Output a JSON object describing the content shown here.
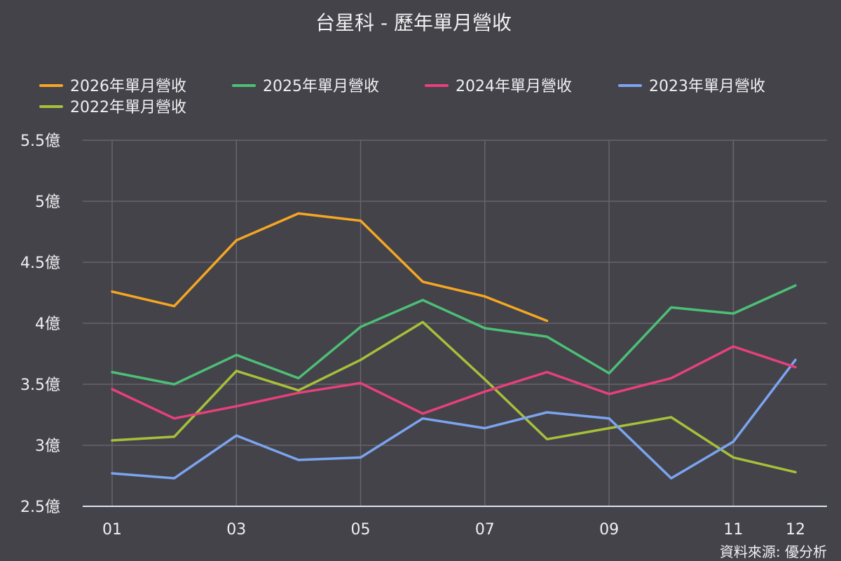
{
  "chart_data": {
    "type": "line",
    "title": "台星科 - 歷年單月營收",
    "x": [
      "01",
      "02",
      "03",
      "04",
      "05",
      "06",
      "07",
      "08",
      "09",
      "10",
      "11",
      "12"
    ],
    "x_tick_labels": [
      "01",
      "03",
      "05",
      "07",
      "09",
      "11",
      "12"
    ],
    "ylim": [
      2.5,
      5.5
    ],
    "y_tick_values": [
      2.5,
      3,
      3.5,
      4,
      4.5,
      5,
      5.5
    ],
    "y_tick_labels": [
      "2.5億",
      "3億",
      "3.5億",
      "4億",
      "4.5億",
      "5億",
      "5.5億"
    ],
    "grid": true,
    "legend_position": "top",
    "series": [
      {
        "name": "2026年單月營收",
        "color": "#f5a623",
        "values": [
          4.26,
          4.14,
          4.68,
          4.9,
          4.84,
          4.34,
          4.22,
          4.02,
          null,
          null,
          null,
          null
        ]
      },
      {
        "name": "2025年單月營收",
        "color": "#4cbf77",
        "values": [
          3.6,
          3.5,
          3.74,
          3.55,
          3.97,
          4.19,
          3.96,
          3.89,
          3.59,
          4.13,
          4.08,
          4.31
        ]
      },
      {
        "name": "2024年單月營收",
        "color": "#e8407a",
        "values": [
          3.46,
          3.22,
          3.32,
          3.43,
          3.51,
          3.26,
          3.44,
          3.6,
          3.42,
          3.55,
          3.81,
          3.64
        ]
      },
      {
        "name": "2023年單月營收",
        "color": "#7ba4f0",
        "values": [
          2.77,
          2.73,
          3.08,
          2.88,
          2.9,
          3.22,
          3.14,
          3.27,
          3.22,
          2.73,
          3.03,
          3.7
        ]
      },
      {
        "name": "2022年單月營收",
        "color": "#a6c03a",
        "values": [
          3.04,
          3.07,
          3.61,
          3.45,
          3.7,
          4.01,
          3.54,
          3.05,
          3.14,
          3.23,
          2.9,
          2.78
        ]
      }
    ],
    "source": "資料來源: 優分析"
  }
}
